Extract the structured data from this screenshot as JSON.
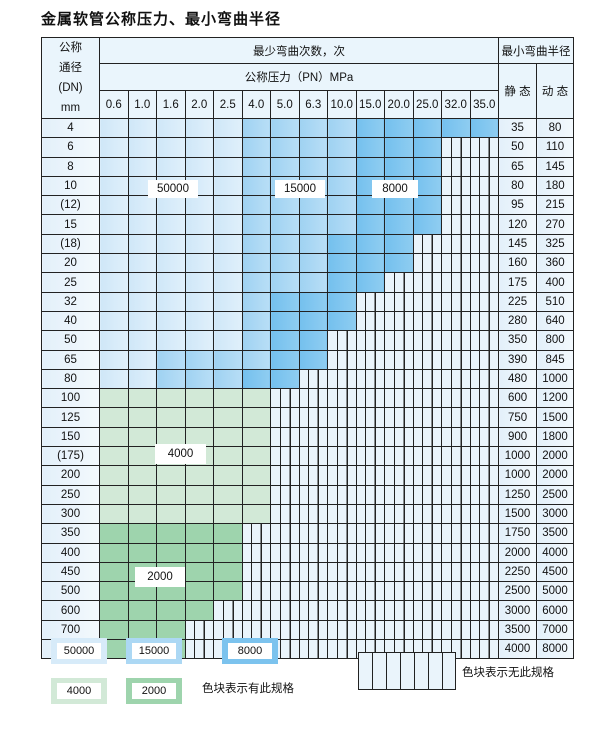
{
  "title": "金属软管公称压力、最小弯曲半径",
  "header": {
    "dn_label": [
      "公称",
      "通径",
      "(DN)",
      "mm"
    ],
    "cycles": "最少弯曲次数，次",
    "pressure": "公称压力（PN）MPa",
    "radius": "最小弯曲半径",
    "static": "静 态",
    "dynamic": "动 态",
    "pressures": [
      "0.6",
      "1.0",
      "1.6",
      "2.0",
      "2.5",
      "4.0",
      "5.0",
      "6.3",
      "10.0",
      "15.0",
      "20.0",
      "25.0",
      "32.0",
      "35.0"
    ]
  },
  "fill_legend": {
    "L": "50000",
    "M": "15000",
    "D": "8000",
    "G": "4000",
    "H": "2000",
    "E": "none"
  },
  "rows": [
    {
      "dn": "4",
      "static": "35",
      "dynamic": "80",
      "fill": "LLLLLMMMMDDDDD"
    },
    {
      "dn": "6",
      "static": "50",
      "dynamic": "110",
      "fill": "LLLLLMMMMDDDEE"
    },
    {
      "dn": "8",
      "static": "65",
      "dynamic": "145",
      "fill": "LLLLLMMMMDDDEE"
    },
    {
      "dn": "10",
      "static": "80",
      "dynamic": "180",
      "fill": "LLLLLMMMMDDDEE"
    },
    {
      "dn": "(12)",
      "static": "95",
      "dynamic": "215",
      "fill": "LLLLLMMMMDDDEE"
    },
    {
      "dn": "15",
      "static": "120",
      "dynamic": "270",
      "fill": "LLLLLMMMMDDDEE"
    },
    {
      "dn": "(18)",
      "static": "145",
      "dynamic": "325",
      "fill": "LLLLLMMMDDDEEE"
    },
    {
      "dn": "20",
      "static": "160",
      "dynamic": "360",
      "fill": "LLLLLMMMDDDEEE"
    },
    {
      "dn": "25",
      "static": "175",
      "dynamic": "400",
      "fill": "LLLLLMMMDDEEEE"
    },
    {
      "dn": "32",
      "static": "225",
      "dynamic": "510",
      "fill": "LLLLLMDDDEEEEE"
    },
    {
      "dn": "40",
      "static": "280",
      "dynamic": "640",
      "fill": "LLLLLMDDDEEEEE"
    },
    {
      "dn": "50",
      "static": "350",
      "dynamic": "800",
      "fill": "LLLLLMDDEEEEEE"
    },
    {
      "dn": "65",
      "static": "390",
      "dynamic": "845",
      "fill": "LLMMMMDDEEEEEE"
    },
    {
      "dn": "80",
      "static": "480",
      "dynamic": "1000",
      "fill": "LLMMMDDEEEEEEE"
    },
    {
      "dn": "100",
      "static": "600",
      "dynamic": "1200",
      "fill": "GGGGGGEEEEEEEE"
    },
    {
      "dn": "125",
      "static": "750",
      "dynamic": "1500",
      "fill": "GGGGGGEEEEEEEE"
    },
    {
      "dn": "150",
      "static": "900",
      "dynamic": "1800",
      "fill": "GGGGGGEEEEEEEE"
    },
    {
      "dn": "(175)",
      "static": "1000",
      "dynamic": "2000",
      "fill": "GGGGGGEEEEEEEE"
    },
    {
      "dn": "200",
      "static": "1000",
      "dynamic": "2000",
      "fill": "GGGGGGEEEEEEEE"
    },
    {
      "dn": "250",
      "static": "1250",
      "dynamic": "2500",
      "fill": "GGGGGGEEEEEEEE"
    },
    {
      "dn": "300",
      "static": "1500",
      "dynamic": "3000",
      "fill": "GGGGGGEEEEEEEE"
    },
    {
      "dn": "350",
      "static": "1750",
      "dynamic": "3500",
      "fill": "HHHHHEEEEEEEEE"
    },
    {
      "dn": "400",
      "static": "2000",
      "dynamic": "4000",
      "fill": "HHHHHEEEEEEEEE"
    },
    {
      "dn": "450",
      "static": "2250",
      "dynamic": "4500",
      "fill": "HHHHHEEEEEEEEE"
    },
    {
      "dn": "500",
      "static": "2500",
      "dynamic": "5000",
      "fill": "HHHHHEEEEEEEEE"
    },
    {
      "dn": "600",
      "static": "3000",
      "dynamic": "6000",
      "fill": "HHHHEEEEEEEEEE"
    },
    {
      "dn": "700",
      "static": "3500",
      "dynamic": "7000",
      "fill": "HHHEEEEEEEEEEE"
    },
    {
      "dn": "800",
      "static": "4000",
      "dynamic": "8000",
      "fill": "HHHEEEEEEEEEEE"
    }
  ],
  "region_labels": {
    "l": "50000",
    "m": "15000",
    "d": "8000",
    "g": "4000",
    "h": "2000"
  },
  "legend": {
    "items": [
      "50000",
      "15000",
      "8000",
      "4000",
      "2000"
    ],
    "has_spec": "色块表示有此规格",
    "no_spec": "色块表示无此规格"
  },
  "colors": {
    "L": "#cfe7f8",
    "M": "#9fd2f2",
    "D": "#74c0ee",
    "G": "#d2e9d7",
    "H": "#9ed4ad",
    "E": "#eaf4fb"
  }
}
